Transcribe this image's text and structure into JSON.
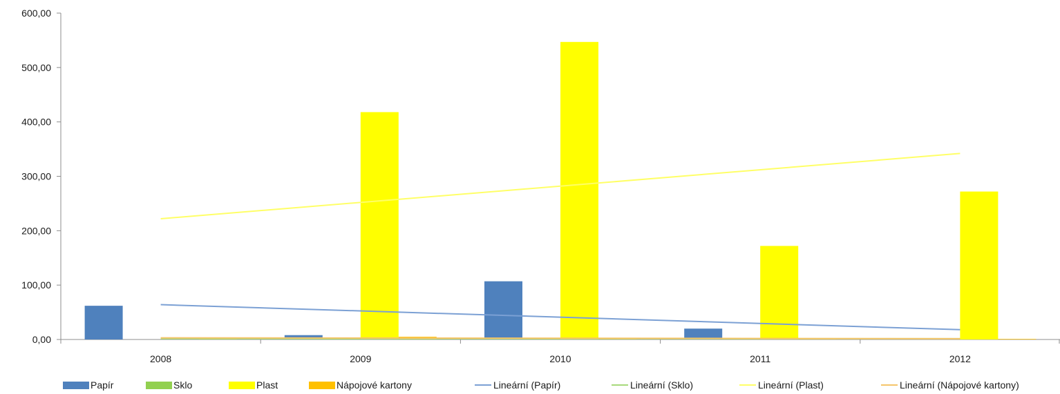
{
  "chart_data": {
    "type": "bar",
    "categories": [
      "2008",
      "2009",
      "2010",
      "2011",
      "2012"
    ],
    "series": [
      {
        "name": "Papír",
        "color": "#4f81bd",
        "values": [
          62,
          8,
          107,
          20,
          0
        ]
      },
      {
        "name": "Sklo",
        "color": "#92d050",
        "values": [
          0,
          2,
          2,
          1,
          0
        ]
      },
      {
        "name": "Plast",
        "color": "#ffff00",
        "values": [
          0,
          418,
          547,
          172,
          272
        ]
      },
      {
        "name": "Nápojové kartony",
        "color": "#ffc000",
        "values": [
          2,
          5,
          3,
          1,
          1
        ]
      }
    ],
    "trendlines": [
      {
        "name": "Lineární (Papír)",
        "series": "Papír",
        "color": "#7ba0d4",
        "start": 64,
        "end": 18
      },
      {
        "name": "Lineární (Sklo)",
        "series": "Sklo",
        "color": "#a6d97a",
        "start": 1.5,
        "end": 1.5
      },
      {
        "name": "Lineární (Plast)",
        "series": "Plast",
        "color": "#ffff66",
        "start": 222,
        "end": 342
      },
      {
        "name": "Lineární (Nápojové kartony)",
        "series": "Nápojové kartony",
        "color": "#f5c469",
        "start": 3,
        "end": 1.5
      }
    ],
    "y_ticks": [
      "0,00",
      "100,00",
      "200,00",
      "300,00",
      "400,00",
      "500,00",
      "600,00"
    ],
    "ylim": [
      0,
      600
    ],
    "y_step": 100,
    "grid": false,
    "legend_position": "bottom",
    "title": "",
    "xlabel": "",
    "ylabel": ""
  }
}
